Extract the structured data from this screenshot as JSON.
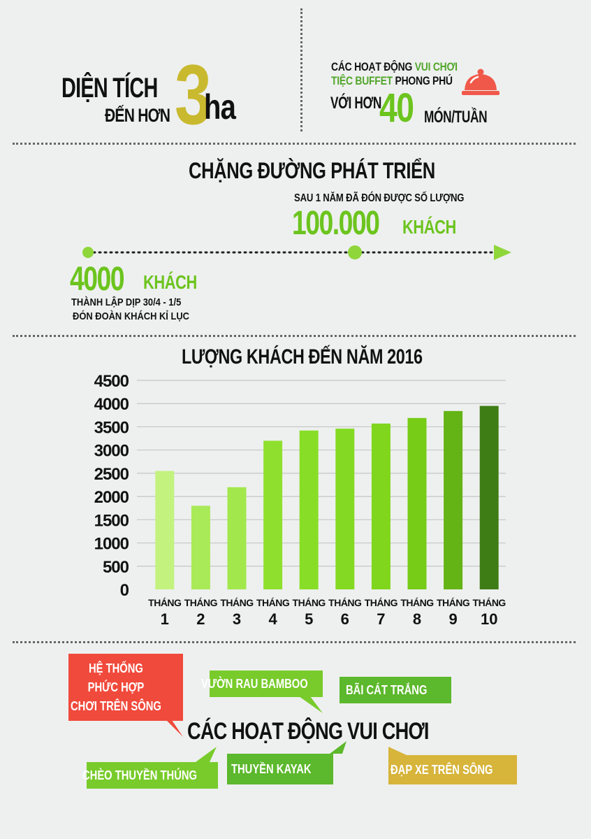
{
  "area": {
    "line1": "DIỆN TÍCH",
    "line2": "ĐẾN HƠN",
    "number": "3",
    "unit": "ha"
  },
  "activities_top": {
    "line1_prefix": "CÁC HOẠT ĐỘNG",
    "line1_highlight": "VUI CHƠI",
    "line2_highlight": "TIỆC BUFFET",
    "line2_suffix": "PHONG PHÚ",
    "line3_prefix": "VỚI HƠN",
    "number": "40",
    "line3_suffix": "MÓN/TUẦN",
    "icon": "food-cloche-icon"
  },
  "timeline": {
    "title": "CHẶNG ĐƯỜNG PHÁT TRIỂN",
    "later_caption": "SAU 1 NĂM ĐÃ ĐÓN ĐƯỢC SỐ LƯỢNG",
    "later_number": "100.000",
    "later_unit": "KHÁCH",
    "start_number": "4000",
    "start_unit": "KHÁCH",
    "start_line1": "THÀNH LẬP DỊP 30/4 - 1/5",
    "start_line2": "ĐÓN  ĐOÀN KHÁCH KỈ LỤC"
  },
  "chart_data": {
    "type": "bar",
    "title": "LƯỢNG KHÁCH ĐẾN NĂM 2016",
    "categories": [
      "THÁNG 1",
      "THÁNG 2",
      "THÁNG 3",
      "THÁNG 4",
      "THÁNG 5",
      "THÁNG 6",
      "THÁNG 7",
      "THÁNG 8",
      "THÁNG 9",
      "THÁNG 10"
    ],
    "category_word": [
      "THÁNG",
      "THÁNG",
      "THÁNG",
      "THÁNG",
      "THÁNG",
      "THÁNG",
      "THÁNG",
      "THÁNG",
      "THÁNG",
      "THÁNG"
    ],
    "category_num": [
      "1",
      "2",
      "3",
      "4",
      "5",
      "6",
      "7",
      "8",
      "9",
      "10"
    ],
    "values": [
      2550,
      1800,
      2200,
      3200,
      3420,
      3460,
      3570,
      3690,
      3840,
      3950
    ],
    "colors": [
      "#c3f27f",
      "#a9ea58",
      "#a2e84c",
      "#8fe02e",
      "#88de27",
      "#84da22",
      "#7fd61c",
      "#77cc17",
      "#64b415",
      "#3e7d16"
    ],
    "yticks": [
      0,
      500,
      1000,
      1500,
      2000,
      2500,
      3000,
      3500,
      4000,
      4500
    ],
    "ylim": [
      0,
      4500
    ],
    "grid": true
  },
  "activities": {
    "title": "CÁC HOẠT ĐỘNG VUI CHƠI",
    "items": [
      {
        "lines": [
          "HỆ THỐNG",
          "PHỨC HỢP",
          "CHƠI TRÊN SÔNG"
        ],
        "color": "#f04a3c"
      },
      {
        "lines": [
          "VƯỜN RAU BAMBOO"
        ],
        "color": "#78cb2b"
      },
      {
        "lines": [
          "BÃI CÁT TRẮNG"
        ],
        "color": "#5cb82c"
      },
      {
        "lines": [
          "CHÈO THUYỀN THÚNG"
        ],
        "color": "#78cb2b"
      },
      {
        "lines": [
          "THUYỀN KAYAK"
        ],
        "color": "#5cb82c"
      },
      {
        "lines": [
          "ĐẠP XE TRÊN SÔNG"
        ],
        "color": "#d7b43a"
      }
    ]
  }
}
